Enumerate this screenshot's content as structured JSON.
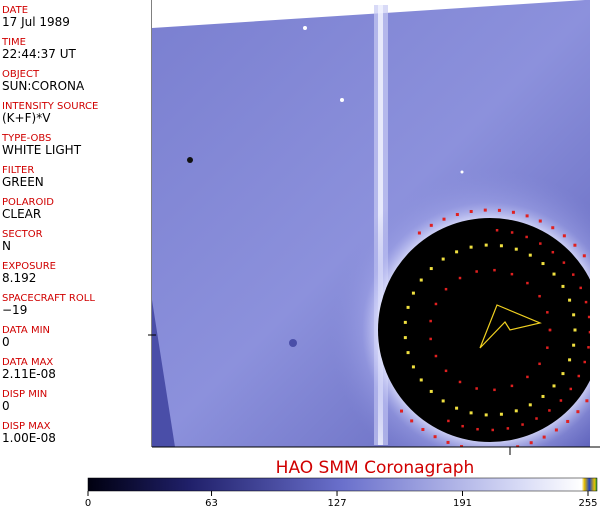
{
  "fields": [
    {
      "label": "DATE",
      "value": "17 Jul 1989"
    },
    {
      "label": "TIME",
      "value": "22:44:37 UT"
    },
    {
      "label": "OBJECT",
      "value": "SUN:CORONA"
    },
    {
      "label": "INTENSITY SOURCE",
      "value": "(K+F)*V"
    },
    {
      "label": "TYPE-OBS",
      "value": "WHITE LIGHT"
    },
    {
      "label": "FILTER",
      "value": "GREEN"
    },
    {
      "label": "POLAROID",
      "value": "CLEAR"
    },
    {
      "label": "SECTOR",
      "value": "N"
    },
    {
      "label": "EXPOSURE",
      "value": "8.192"
    },
    {
      "label": "SPACECRAFT ROLL",
      "value": "−19"
    },
    {
      "label": "DATA MIN",
      "value": "0"
    },
    {
      "label": "DATA MAX",
      "value": "2.11E-08"
    },
    {
      "label": "DISP MIN",
      "value": "0"
    },
    {
      "label": "DISP MAX",
      "value": "1.00E-08"
    }
  ],
  "title": "HAO  SMM Coronagraph",
  "colorbar": {
    "lim": [
      0,
      255
    ],
    "ticks": [
      0,
      63,
      127,
      191,
      255
    ]
  }
}
